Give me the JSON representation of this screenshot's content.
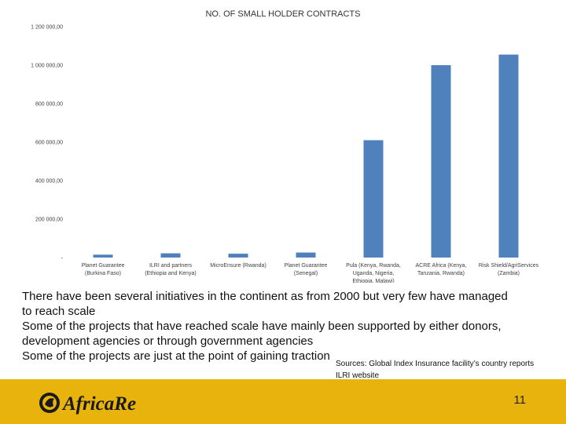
{
  "chart_data": {
    "type": "bar",
    "title": "NO. OF SMALL HOLDER CONTRACTS",
    "categories": [
      [
        "Planet Guarantee",
        "(Burkina Faso)"
      ],
      [
        "ILRI and partners",
        "(Ethiopia and Kenya)"
      ],
      [
        "MicroEnsure (Rwanda)"
      ],
      [
        "Planet Guarantee",
        "(Senegal)"
      ],
      [
        "Pula (Kenya, Rwanda,",
        "Uganda, Nigeria,",
        "Ethiopia, Malawi)"
      ],
      [
        "ACRE Africa (Kenya,",
        "Tanzania, Rwanda)"
      ],
      [
        "Risk Shield/AgriServices",
        "(Zambia)"
      ]
    ],
    "values": [
      15000,
      22000,
      20000,
      26000,
      610000,
      1000000,
      1055000
    ],
    "ylim": [
      0,
      1200000
    ],
    "yticks": [
      {
        "value": 0,
        "label": "-"
      },
      {
        "value": 200000,
        "label": "200 000,00"
      },
      {
        "value": 400000,
        "label": "400 000,00"
      },
      {
        "value": 600000,
        "label": "600 000,00"
      },
      {
        "value": 800000,
        "label": "800 000,00"
      },
      {
        "value": 1000000,
        "label": "1 000 000,00"
      },
      {
        "value": 1200000,
        "label": "1 200 000,00"
      }
    ],
    "grid": false,
    "bar_color": "#4f81bd"
  },
  "body": {
    "lines": [
      "There have been several initiatives in the continent as from 2000 but very few have managed",
      "to reach scale",
      "Some of the projects that have reached scale have mainly been supported by either donors,",
      "development agencies or through government agencies",
      "Some of the projects are just at the point of gaining traction"
    ]
  },
  "sources": {
    "line1": "Sources: Global Index Insurance facility’s country reports",
    "line2": "ILRI website"
  },
  "footer": {
    "logo_text": "AfricaRe",
    "page_number": "11",
    "color": "#e8b30c"
  }
}
